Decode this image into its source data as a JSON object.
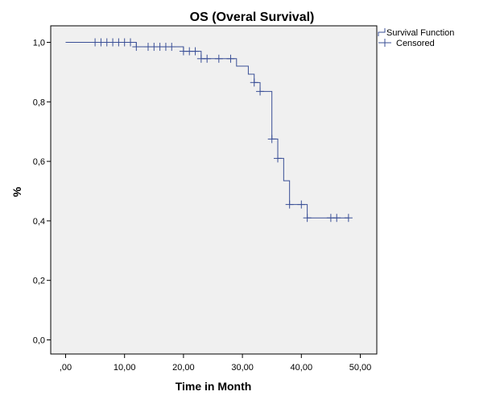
{
  "chart_data": {
    "type": "line",
    "title": "OS (Overal Survival)",
    "xlabel": "Time in Month",
    "ylabel": "%",
    "xlim": [
      0,
      50
    ],
    "ylim": [
      0,
      1
    ],
    "x_ticks": [
      0,
      10,
      20,
      30,
      40,
      50
    ],
    "x_tick_labels": [
      ",00",
      "10,00",
      "20,00",
      "30,00",
      "40,00",
      "50,00"
    ],
    "y_ticks": [
      0,
      0.2,
      0.4,
      0.6,
      0.8,
      1.0
    ],
    "y_tick_labels": [
      "0,0",
      "0,2",
      "0,4",
      "0,6",
      "0,8",
      "1,0"
    ],
    "grid": false,
    "legend_position": "top-right outside",
    "colors": {
      "series": "#3a4f96",
      "plot_background": "#f0f0f0",
      "axes": "#000000"
    },
    "series": [
      {
        "name": "Survival Function",
        "step": true,
        "x": [
          0,
          12,
          20,
          23,
          29,
          31,
          32,
          33,
          35,
          36,
          37,
          38,
          41,
          48
        ],
        "y": [
          1.0,
          0.985,
          0.97,
          0.945,
          0.92,
          0.893,
          0.865,
          0.835,
          0.675,
          0.61,
          0.535,
          0.455,
          0.41,
          0.41
        ]
      },
      {
        "name": "Censored",
        "marker": "+",
        "points": [
          [
            5,
            1.0
          ],
          [
            6,
            1.0
          ],
          [
            7,
            1.0
          ],
          [
            8,
            1.0
          ],
          [
            9,
            1.0
          ],
          [
            10,
            1.0
          ],
          [
            11,
            1.0
          ],
          [
            12,
            0.985
          ],
          [
            14,
            0.985
          ],
          [
            15,
            0.985
          ],
          [
            16,
            0.985
          ],
          [
            17,
            0.985
          ],
          [
            18,
            0.985
          ],
          [
            20,
            0.97
          ],
          [
            21,
            0.97
          ],
          [
            22,
            0.97
          ],
          [
            23,
            0.945
          ],
          [
            24,
            0.945
          ],
          [
            26,
            0.945
          ],
          [
            28,
            0.945
          ],
          [
            32,
            0.865
          ],
          [
            33,
            0.835
          ],
          [
            35,
            0.675
          ],
          [
            36,
            0.61
          ],
          [
            38,
            0.455
          ],
          [
            40,
            0.455
          ],
          [
            41,
            0.41
          ],
          [
            45,
            0.41
          ],
          [
            46,
            0.41
          ],
          [
            48,
            0.41
          ]
        ]
      }
    ]
  }
}
